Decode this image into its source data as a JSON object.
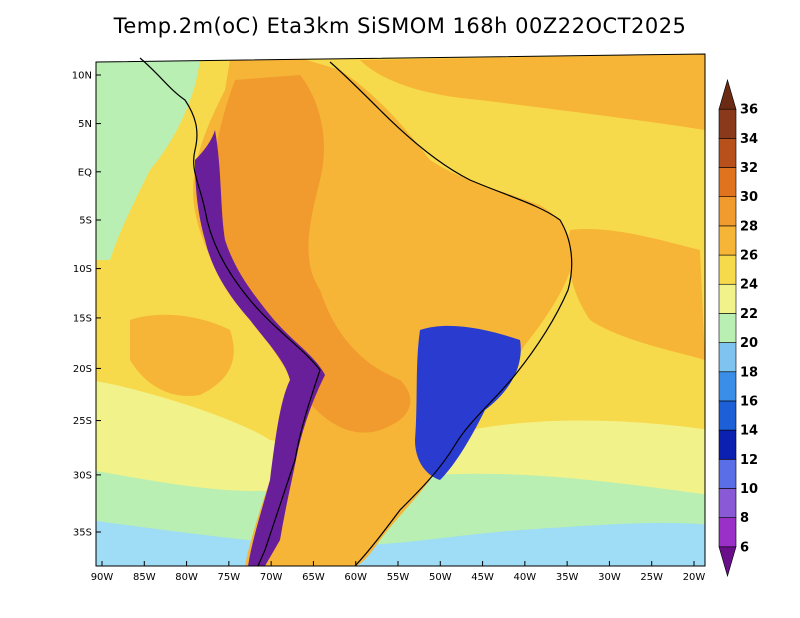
{
  "title": "Temp.2m(oC) Eta3km SiSMOM 168h 00Z22OCT2025",
  "lat_ticks": [
    {
      "label": "10N",
      "lat": 10
    },
    {
      "label": "5N",
      "lat": 5
    },
    {
      "label": "EQ",
      "lat": 0
    },
    {
      "label": "5S",
      "lat": -5
    },
    {
      "label": "10S",
      "lat": -10
    },
    {
      "label": "15S",
      "lat": -15
    },
    {
      "label": "20S",
      "lat": -20
    },
    {
      "label": "25S",
      "lat": -25
    },
    {
      "label": "30S",
      "lat": -30
    },
    {
      "label": "35S",
      "lat": -35
    }
  ],
  "lon_ticks": [
    {
      "label": "90W",
      "lon": -90
    },
    {
      "label": "85W",
      "lon": -85
    },
    {
      "label": "80W",
      "lon": -80
    },
    {
      "label": "75W",
      "lon": -75
    },
    {
      "label": "70W",
      "lon": -70
    },
    {
      "label": "65W",
      "lon": -65
    },
    {
      "label": "60W",
      "lon": -60
    },
    {
      "label": "55W",
      "lon": -55
    },
    {
      "label": "50W",
      "lon": -50
    },
    {
      "label": "45W",
      "lon": -45
    },
    {
      "label": "40W",
      "lon": -40
    },
    {
      "label": "35W",
      "lon": -35
    },
    {
      "label": "30W",
      "lon": -30
    },
    {
      "label": "25W",
      "lon": -25
    },
    {
      "label": "20W",
      "lon": -20
    }
  ],
  "colorbar": {
    "unit": "oC",
    "levels": [
      "6",
      "8",
      "10",
      "12",
      "14",
      "16",
      "18",
      "20",
      "22",
      "24",
      "26",
      "28",
      "30",
      "32",
      "34",
      "36"
    ],
    "colors": [
      "#6a0f8a",
      "#9b30c9",
      "#8a5ad6",
      "#5a6ee8",
      "#0b1fb0",
      "#1c5fd6",
      "#3a8ee8",
      "#7fc4f0",
      "#b9efb2",
      "#f2f28a",
      "#f7d94c",
      "#f6b536",
      "#f19a2e",
      "#e0741e",
      "#b8501c",
      "#8a3a1a",
      "#6b2a14"
    ]
  },
  "field_colors": {
    "ocean_cold": "#9fdcf5",
    "ocean_cool": "#b9efb2",
    "ocean_mild": "#f2f28a",
    "ocean_warm": "#f7d94c",
    "ocean_hot": "#f6b536",
    "land_hot": "#f19a2e",
    "land_very_hot": "#e0741e",
    "highland": "#2a3bd0",
    "andes": "#6a1f9a",
    "coast": "#000000"
  }
}
